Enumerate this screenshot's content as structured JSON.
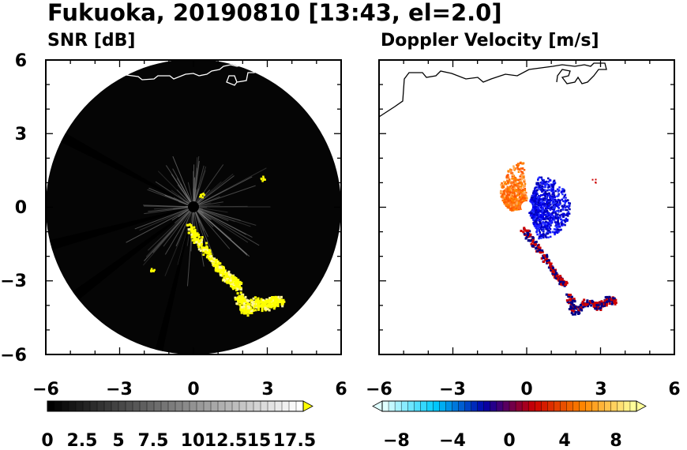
{
  "title": "Fukuoka, 20190810 [13:43, el=2.0]",
  "chart_data": [
    {
      "type": "heatmap",
      "title": "SNR [dB]",
      "xlim": [
        -6,
        6
      ],
      "ylim": [
        -6,
        6
      ],
      "x_ticks": [
        "−6",
        "−3",
        "0",
        "3",
        "6"
      ],
      "y_ticks": [
        "6",
        "3",
        "0",
        "−3",
        "−6"
      ],
      "radar_range": 6,
      "colorbar": {
        "labels": [
          "0",
          "2.5",
          "5",
          "7.5",
          "10",
          "12.5",
          "15",
          "17.5"
        ],
        "range": [
          0,
          18
        ],
        "extend": "max",
        "colors": [
          "#000000",
          "#ffffff",
          "#ffff00"
        ]
      },
      "echo_zones": [
        {
          "kind": "clutter",
          "x": [
            -0.5,
            1.4
          ],
          "y": [
            -1.2,
            2.3
          ],
          "level": 6
        },
        {
          "kind": "rain_band",
          "x": [
            -0.3,
            1.9
          ],
          "y": [
            -3.8,
            -0.8
          ],
          "level": 18
        },
        {
          "kind": "rain_cells",
          "x": [
            1.7,
            3.7
          ],
          "y": [
            -4.4,
            -3.6
          ],
          "level": 18
        }
      ]
    },
    {
      "type": "heatmap",
      "title": "Doppler Velocity [m/s]",
      "xlim": [
        -6,
        6
      ],
      "ylim": [
        -6,
        6
      ],
      "x_ticks": [
        "−6",
        "−3",
        "0",
        "3",
        "6"
      ],
      "y_ticks": [],
      "colorbar": {
        "labels": [
          "−8",
          "−4",
          "0",
          "4",
          "8"
        ],
        "range": [
          -10,
          10
        ],
        "extend": "both",
        "colors": [
          "#e0ffff",
          "#00ccff",
          "#0000aa",
          "#cc0000",
          "#ff8800",
          "#ffff99"
        ]
      },
      "echo_zones": [
        {
          "kind": "approaching",
          "x": [
            0.0,
            1.6
          ],
          "y": [
            -1.3,
            1.3
          ],
          "value": -5
        },
        {
          "kind": "receding",
          "x": [
            -1.4,
            0.0
          ],
          "y": [
            0.0,
            2.0
          ],
          "value": 5
        },
        {
          "kind": "rain_band",
          "x": [
            -0.3,
            1.5
          ],
          "y": [
            -3.2,
            -0.8
          ],
          "value": 0
        },
        {
          "kind": "rain_cells",
          "x": [
            1.6,
            3.5
          ],
          "y": [
            -4.4,
            -3.6
          ],
          "value": 0
        }
      ]
    }
  ]
}
